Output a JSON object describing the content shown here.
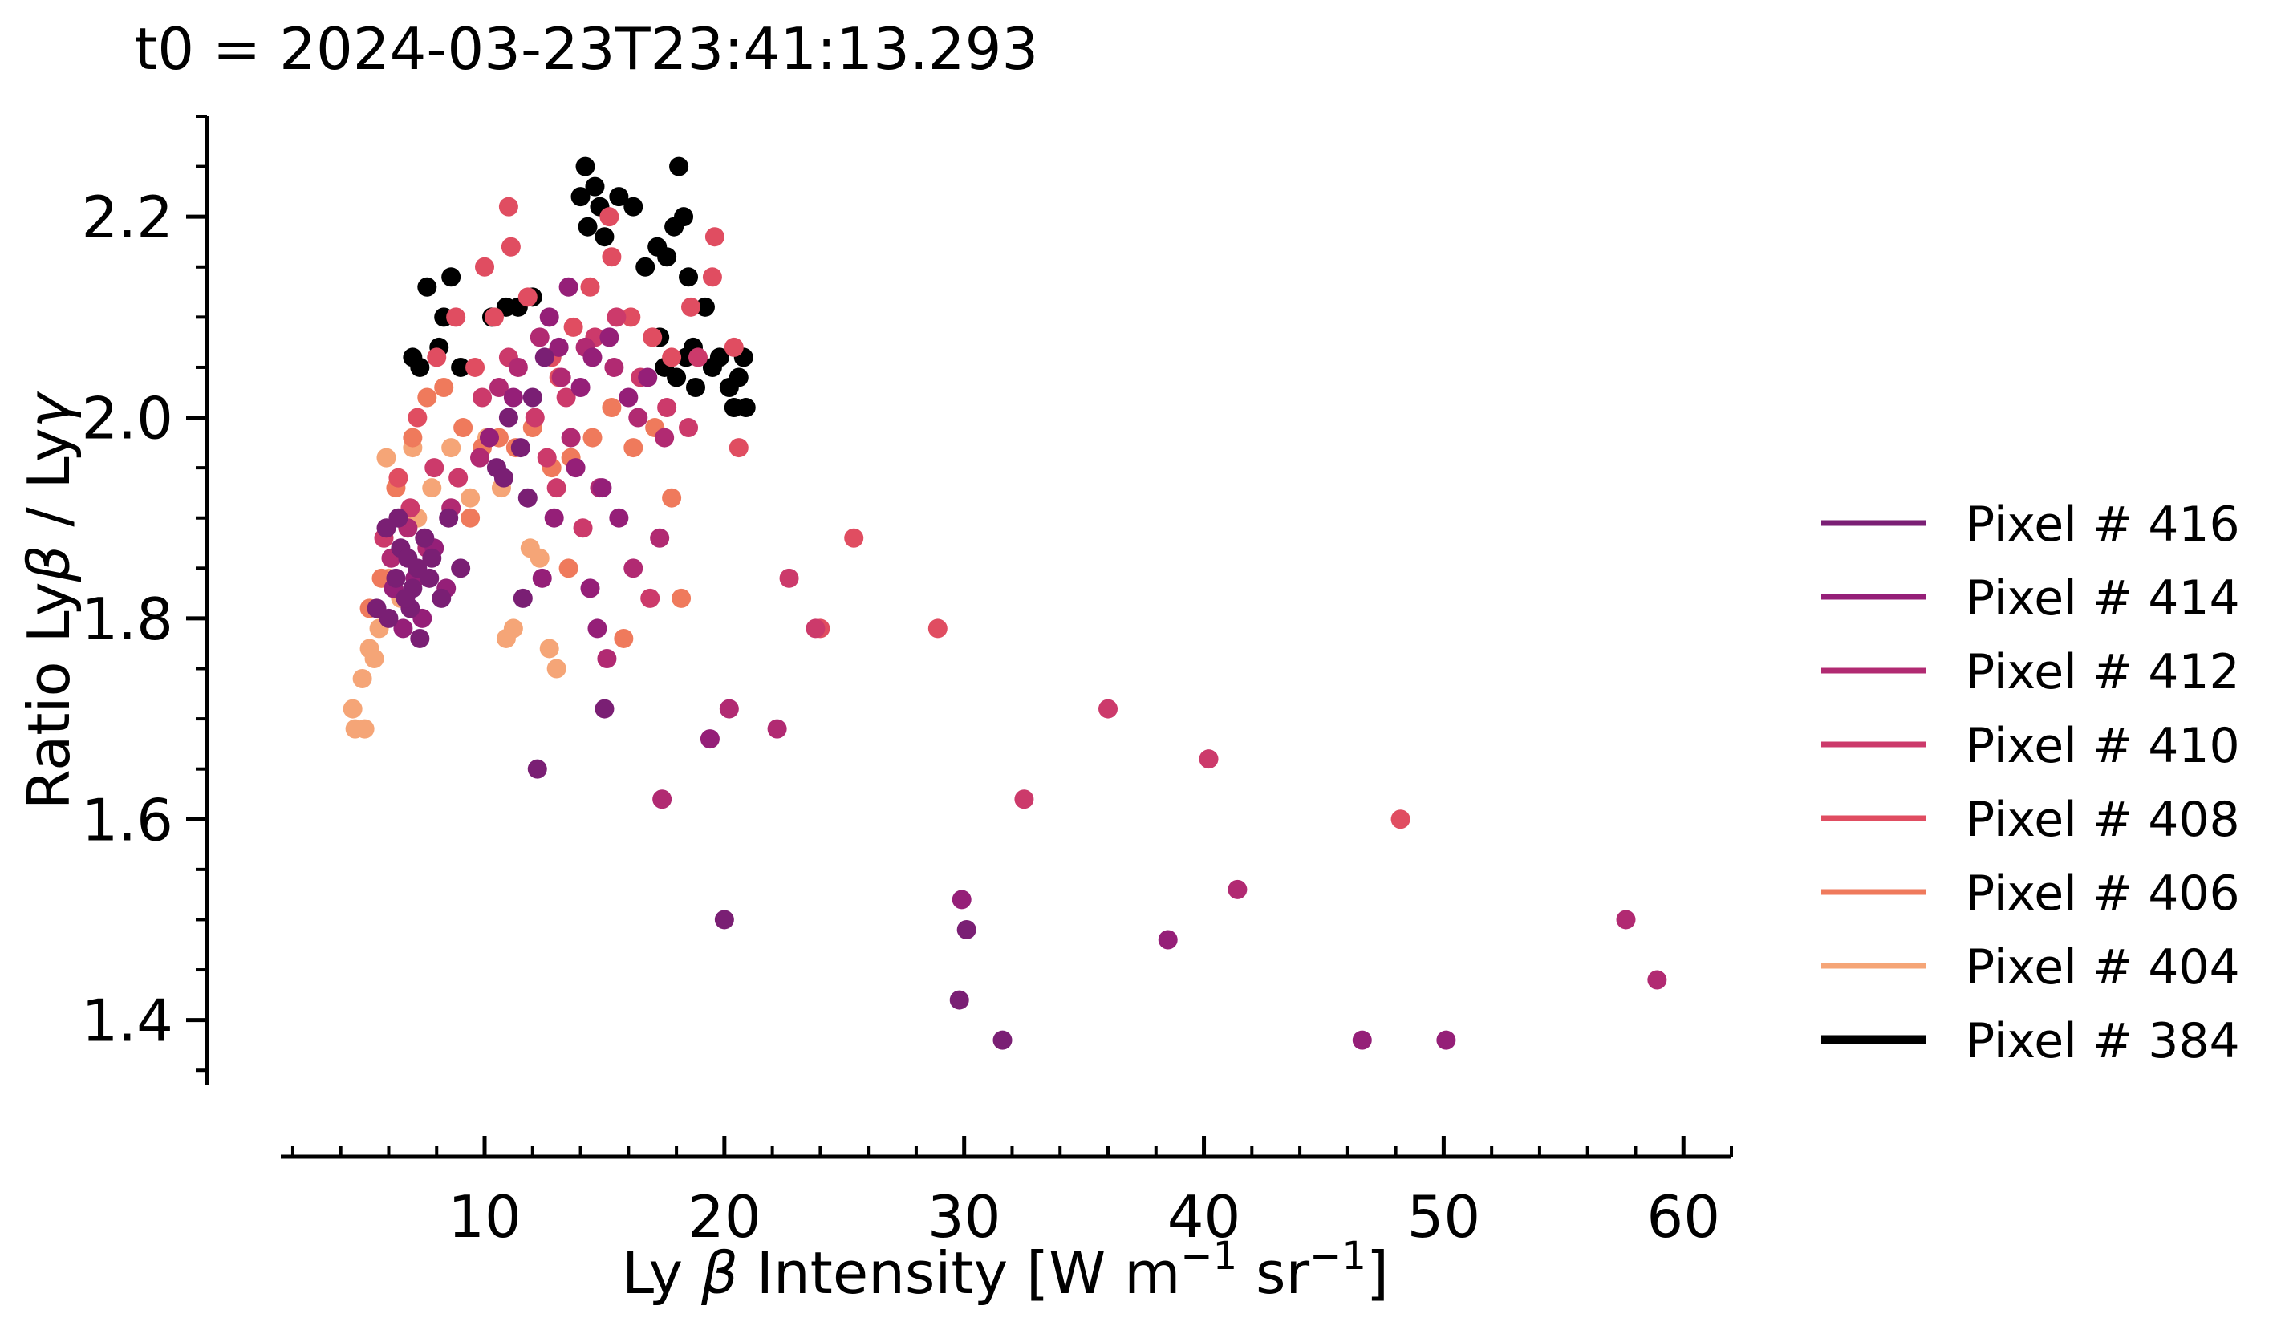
{
  "chart_data": {
    "type": "scatter",
    "title": "t0 = 2024-03-23T23:41:13.293",
    "xlabel_parts": {
      "pre": "Ly ",
      "beta": "β",
      "mid": " Intensity [W m",
      "sup1": "−1",
      "mid2": " sr",
      "sup2": "−1",
      "post": "]"
    },
    "ylabel_parts": {
      "pre": "Ratio Ly",
      "beta": "β",
      "mid": " / Ly",
      "gamma": "γ"
    },
    "xlim": [
      1.5,
      62
    ],
    "ylim": [
      1.335,
      2.3
    ],
    "x_ticks": [
      10,
      20,
      30,
      40,
      50,
      60
    ],
    "x_tick_labels": [
      "10",
      "20",
      "30",
      "40",
      "50",
      "60"
    ],
    "x_minor_step": 2,
    "y_ticks": [
      1.4,
      1.6,
      1.8,
      2.0,
      2.2
    ],
    "y_tick_labels": [
      "1.4",
      "1.6",
      "1.8",
      "2.0",
      "2.2"
    ],
    "y_minor_step": 0.05,
    "legend_placement": "right, outside plot",
    "series": [
      {
        "name": "Pixel # 416",
        "color": "#7a1f74",
        "points": [
          [
            6.0,
            1.8
          ],
          [
            6.3,
            1.84
          ],
          [
            6.5,
            1.87
          ],
          [
            6.8,
            1.86
          ],
          [
            7.0,
            1.83
          ],
          [
            7.2,
            1.85
          ],
          [
            6.9,
            1.81
          ],
          [
            7.5,
            1.88
          ],
          [
            7.8,
            1.86
          ],
          [
            8.2,
            1.82
          ],
          [
            6.4,
            1.9
          ],
          [
            5.5,
            1.81
          ],
          [
            5.9,
            1.89
          ],
          [
            7.3,
            1.78
          ],
          [
            8.5,
            1.9
          ],
          [
            6.7,
            1.82
          ],
          [
            7.7,
            1.84
          ],
          [
            9.0,
            1.85
          ],
          [
            10.5,
            1.95
          ],
          [
            11.0,
            2.0
          ],
          [
            11.5,
            1.97
          ],
          [
            12.0,
            2.02
          ],
          [
            12.5,
            2.06
          ],
          [
            11.8,
            1.92
          ],
          [
            11.6,
            1.82
          ],
          [
            10.8,
            1.94
          ],
          [
            12.2,
            1.65
          ],
          [
            15.0,
            1.71
          ],
          [
            20.0,
            1.5
          ],
          [
            30.1,
            1.49
          ],
          [
            29.8,
            1.42
          ],
          [
            31.6,
            1.38
          ]
        ]
      },
      {
        "name": "Pixel # 414",
        "color": "#951f78",
        "points": [
          [
            6.2,
            1.83
          ],
          [
            6.6,
            1.79
          ],
          [
            7.1,
            1.84
          ],
          [
            7.4,
            1.8
          ],
          [
            7.9,
            1.87
          ],
          [
            8.4,
            1.83
          ],
          [
            10.2,
            1.98
          ],
          [
            11.2,
            2.02
          ],
          [
            12.7,
            2.1
          ],
          [
            13.5,
            2.13
          ],
          [
            13.1,
            2.07
          ],
          [
            14.0,
            2.03
          ],
          [
            14.5,
            2.06
          ],
          [
            15.2,
            2.08
          ],
          [
            16.0,
            2.02
          ],
          [
            16.8,
            2.04
          ],
          [
            13.8,
            1.95
          ],
          [
            12.9,
            1.9
          ],
          [
            14.9,
            1.93
          ],
          [
            15.6,
            1.9
          ],
          [
            12.4,
            1.84
          ],
          [
            14.4,
            1.83
          ],
          [
            14.7,
            1.79
          ],
          [
            19.4,
            1.68
          ],
          [
            29.9,
            1.52
          ],
          [
            38.5,
            1.48
          ],
          [
            46.6,
            1.38
          ],
          [
            50.1,
            1.38
          ]
        ]
      },
      {
        "name": "Pixel # 412",
        "color": "#b12a72",
        "points": [
          [
            6.1,
            1.86
          ],
          [
            6.8,
            1.89
          ],
          [
            7.6,
            1.87
          ],
          [
            8.6,
            1.91
          ],
          [
            9.8,
            1.96
          ],
          [
            10.6,
            2.03
          ],
          [
            11.4,
            2.05
          ],
          [
            12.3,
            2.08
          ],
          [
            13.2,
            2.04
          ],
          [
            14.2,
            2.07
          ],
          [
            15.4,
            2.05
          ],
          [
            16.4,
            2.0
          ],
          [
            17.5,
            1.98
          ],
          [
            13.6,
            1.98
          ],
          [
            14.8,
            1.93
          ],
          [
            16.2,
            1.85
          ],
          [
            17.3,
            1.88
          ],
          [
            15.1,
            1.76
          ],
          [
            17.4,
            1.62
          ],
          [
            20.2,
            1.71
          ],
          [
            22.2,
            1.69
          ],
          [
            41.4,
            1.53
          ],
          [
            57.6,
            1.5
          ],
          [
            58.9,
            1.44
          ]
        ]
      },
      {
        "name": "Pixel # 410",
        "color": "#cc3a6b",
        "points": [
          [
            5.8,
            1.88
          ],
          [
            6.9,
            1.91
          ],
          [
            7.9,
            1.95
          ],
          [
            8.9,
            1.94
          ],
          [
            9.9,
            2.02
          ],
          [
            11.0,
            2.06
          ],
          [
            12.1,
            2.0
          ],
          [
            12.6,
            1.96
          ],
          [
            13.4,
            2.02
          ],
          [
            14.6,
            2.08
          ],
          [
            15.5,
            2.1
          ],
          [
            16.5,
            2.04
          ],
          [
            17.6,
            2.01
          ],
          [
            18.5,
            1.99
          ],
          [
            18.9,
            2.06
          ],
          [
            14.1,
            1.89
          ],
          [
            16.9,
            1.82
          ],
          [
            13.0,
            1.93
          ],
          [
            22.7,
            1.84
          ],
          [
            23.8,
            1.79
          ],
          [
            32.5,
            1.62
          ],
          [
            36.0,
            1.71
          ],
          [
            40.2,
            1.66
          ]
        ]
      },
      {
        "name": "Pixel # 408",
        "color": "#e04d61",
        "points": [
          [
            6.4,
            1.94
          ],
          [
            7.2,
            2.0
          ],
          [
            8.0,
            2.06
          ],
          [
            8.8,
            2.1
          ],
          [
            9.6,
            2.05
          ],
          [
            10.4,
            2.1
          ],
          [
            11.1,
            2.17
          ],
          [
            11.8,
            2.12
          ],
          [
            12.8,
            2.06
          ],
          [
            13.7,
            2.09
          ],
          [
            14.4,
            2.13
          ],
          [
            15.3,
            2.16
          ],
          [
            16.1,
            2.1
          ],
          [
            17.0,
            2.08
          ],
          [
            17.8,
            2.06
          ],
          [
            18.6,
            2.11
          ],
          [
            19.5,
            2.14
          ],
          [
            19.6,
            2.18
          ],
          [
            20.4,
            2.07
          ],
          [
            20.6,
            1.97
          ],
          [
            11.0,
            2.21
          ],
          [
            15.2,
            2.2
          ],
          [
            13.1,
            2.04
          ],
          [
            10.0,
            2.15
          ],
          [
            25.4,
            1.88
          ],
          [
            24.0,
            1.79
          ],
          [
            28.9,
            1.79
          ],
          [
            48.2,
            1.6
          ]
        ]
      },
      {
        "name": "Pixel # 406",
        "color": "#ef7a5c",
        "points": [
          [
            5.2,
            1.81
          ],
          [
            5.7,
            1.84
          ],
          [
            6.3,
            1.93
          ],
          [
            7.0,
            1.98
          ],
          [
            7.6,
            2.02
          ],
          [
            8.3,
            2.03
          ],
          [
            9.1,
            1.99
          ],
          [
            9.9,
            1.97
          ],
          [
            10.6,
            1.98
          ],
          [
            11.3,
            1.97
          ],
          [
            12.0,
            1.99
          ],
          [
            12.8,
            1.95
          ],
          [
            13.6,
            1.96
          ],
          [
            14.5,
            1.98
          ],
          [
            15.3,
            2.01
          ],
          [
            16.2,
            1.97
          ],
          [
            17.1,
            1.99
          ],
          [
            17.8,
            1.92
          ],
          [
            18.2,
            1.82
          ],
          [
            15.8,
            1.78
          ],
          [
            13.5,
            1.85
          ],
          [
            9.4,
            1.9
          ]
        ]
      },
      {
        "name": "Pixel # 404",
        "color": "#f5a577",
        "points": [
          [
            4.5,
            1.71
          ],
          [
            4.6,
            1.69
          ],
          [
            4.9,
            1.74
          ],
          [
            5.0,
            1.69
          ],
          [
            5.2,
            1.77
          ],
          [
            5.4,
            1.76
          ],
          [
            5.6,
            1.79
          ],
          [
            6.0,
            1.84
          ],
          [
            6.5,
            1.82
          ],
          [
            7.2,
            1.9
          ],
          [
            7.8,
            1.93
          ],
          [
            8.6,
            1.97
          ],
          [
            9.4,
            1.92
          ],
          [
            10.1,
            1.98
          ],
          [
            10.7,
            1.93
          ],
          [
            11.2,
            1.79
          ],
          [
            10.9,
            1.78
          ],
          [
            11.9,
            1.87
          ],
          [
            12.3,
            1.86
          ],
          [
            12.7,
            1.77
          ],
          [
            13.0,
            1.75
          ],
          [
            5.9,
            1.96
          ],
          [
            7.0,
            1.97
          ]
        ]
      },
      {
        "name": "Pixel # 384",
        "color": "#000000",
        "points": [
          [
            7.0,
            2.06
          ],
          [
            7.3,
            2.05
          ],
          [
            7.6,
            2.13
          ],
          [
            8.1,
            2.07
          ],
          [
            8.3,
            2.1
          ],
          [
            8.6,
            2.14
          ],
          [
            9.0,
            2.05
          ],
          [
            10.3,
            2.1
          ],
          [
            10.9,
            2.11
          ],
          [
            11.4,
            2.11
          ],
          [
            12.0,
            2.12
          ],
          [
            14.0,
            2.22
          ],
          [
            14.2,
            2.25
          ],
          [
            14.3,
            2.19
          ],
          [
            14.6,
            2.23
          ],
          [
            14.8,
            2.21
          ],
          [
            15.0,
            2.18
          ],
          [
            15.6,
            2.22
          ],
          [
            16.2,
            2.21
          ],
          [
            16.7,
            2.15
          ],
          [
            17.2,
            2.17
          ],
          [
            17.6,
            2.16
          ],
          [
            17.9,
            2.19
          ],
          [
            18.1,
            2.25
          ],
          [
            18.3,
            2.2
          ],
          [
            18.5,
            2.14
          ],
          [
            17.3,
            2.08
          ],
          [
            17.5,
            2.05
          ],
          [
            18.0,
            2.04
          ],
          [
            18.4,
            2.06
          ],
          [
            18.8,
            2.03
          ],
          [
            19.2,
            2.11
          ],
          [
            19.5,
            2.05
          ],
          [
            19.8,
            2.06
          ],
          [
            20.2,
            2.03
          ],
          [
            20.6,
            2.04
          ],
          [
            20.8,
            2.06
          ],
          [
            20.4,
            2.01
          ],
          [
            20.9,
            2.01
          ],
          [
            18.7,
            2.07
          ]
        ]
      }
    ]
  }
}
